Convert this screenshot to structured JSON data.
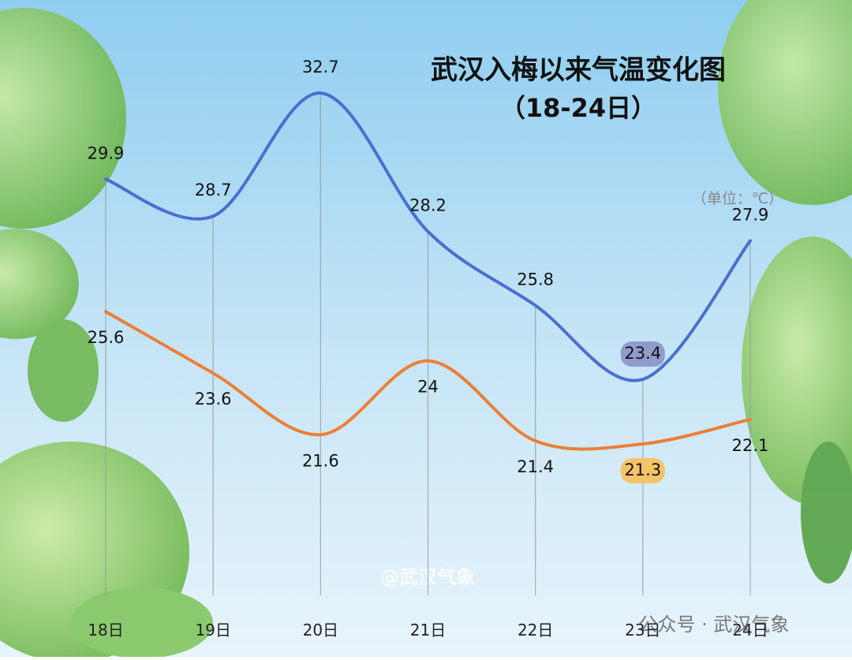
{
  "chart_data": {
    "type": "line",
    "title": "武汉入梅以来气温变化图",
    "subtitle": "（18-24日）",
    "unit_note": "（单位：℃）",
    "watermarks": [
      "@武汉气象",
      "公众号 · 武汉气象"
    ],
    "categories": [
      "18日",
      "19日",
      "20日",
      "21日",
      "22日",
      "23日",
      "24日"
    ],
    "series": [
      {
        "color": "#4a6fd0",
        "highlight_color": "#8a93c8",
        "values": [
          29.9,
          28.7,
          32.7,
          28.2,
          25.8,
          23.4,
          27.9
        ]
      },
      {
        "color": "#ec7f36",
        "highlight_color": "#f8c05a",
        "values": [
          25.6,
          23.6,
          21.6,
          24,
          21.4,
          21.3,
          22.1
        ]
      }
    ],
    "highlight_index": 5
  }
}
